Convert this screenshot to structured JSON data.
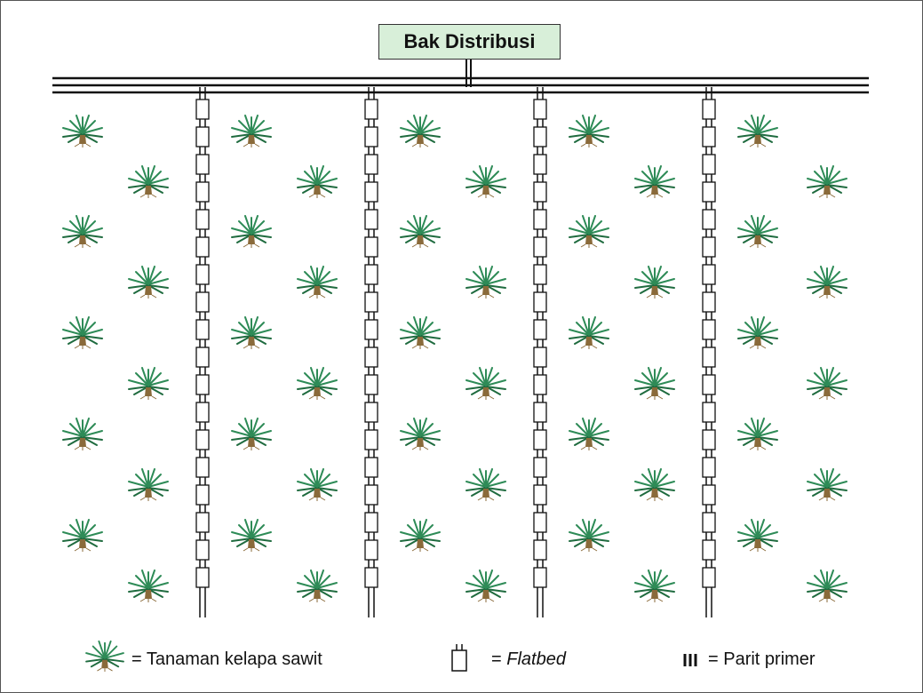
{
  "title": "Bak Distribusi",
  "legend": {
    "palm_label": "= Tanaman kelapa  sawit",
    "flatbed_prefix": "= ",
    "flatbed_label": "Flatbed",
    "primer_label": "= Parit primer"
  },
  "colors": {
    "title_fill": "#d8efd9",
    "palm_green": "#2e8b57",
    "palm_dark": "#1f6b3f",
    "trunk": "#8a6a3a",
    "line": "#111111"
  },
  "icons": [
    "palm-tree-icon",
    "flatbed-icon",
    "parit-primer-icon"
  ]
}
